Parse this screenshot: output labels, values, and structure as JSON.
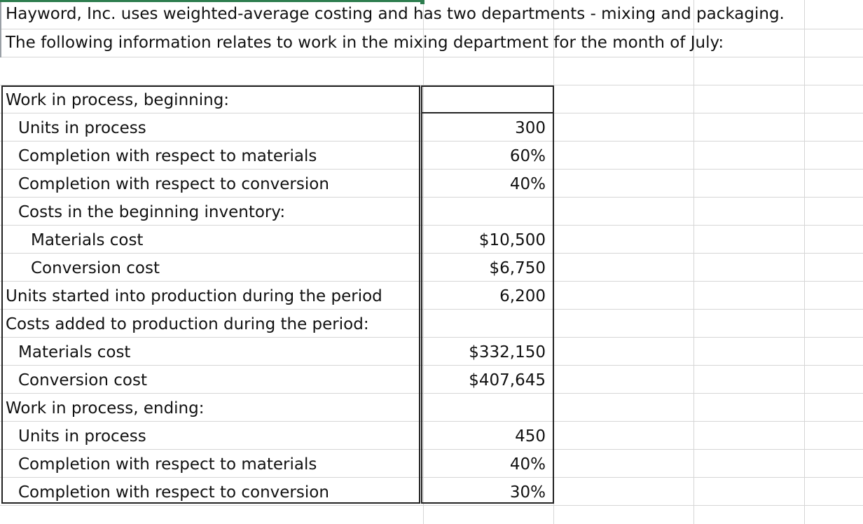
{
  "header": {
    "line1": "Hayword, Inc. uses weighted-average costing and has two departments - mixing and packaging.",
    "line2": "The following information relates to work in the mixing department for the month of July:"
  },
  "table": {
    "rows": [
      {
        "label": "Work in process, beginning:",
        "value": ""
      },
      {
        "label": "Units in process",
        "value": "300"
      },
      {
        "label": "Completion with respect to materials",
        "value": "60%"
      },
      {
        "label": "Completion with respect to conversion",
        "value": "40%"
      },
      {
        "label": "Costs in the beginning inventory:",
        "value": ""
      },
      {
        "label": "Materials cost",
        "value": "$10,500"
      },
      {
        "label": "Conversion cost",
        "value": "$6,750"
      },
      {
        "label": "Units started into production during the period",
        "value": "6,200"
      },
      {
        "label": "Costs added to production during the period:",
        "value": ""
      },
      {
        "label": "Materials cost",
        "value": "$332,150"
      },
      {
        "label": "Conversion cost",
        "value": "$407,645"
      },
      {
        "label": "Work in process, ending:",
        "value": ""
      },
      {
        "label": "Units in process",
        "value": "450"
      },
      {
        "label": "Completion with respect to materials",
        "value": "40%"
      },
      {
        "label": "Completion with respect to conversion",
        "value": "30%"
      }
    ]
  }
}
